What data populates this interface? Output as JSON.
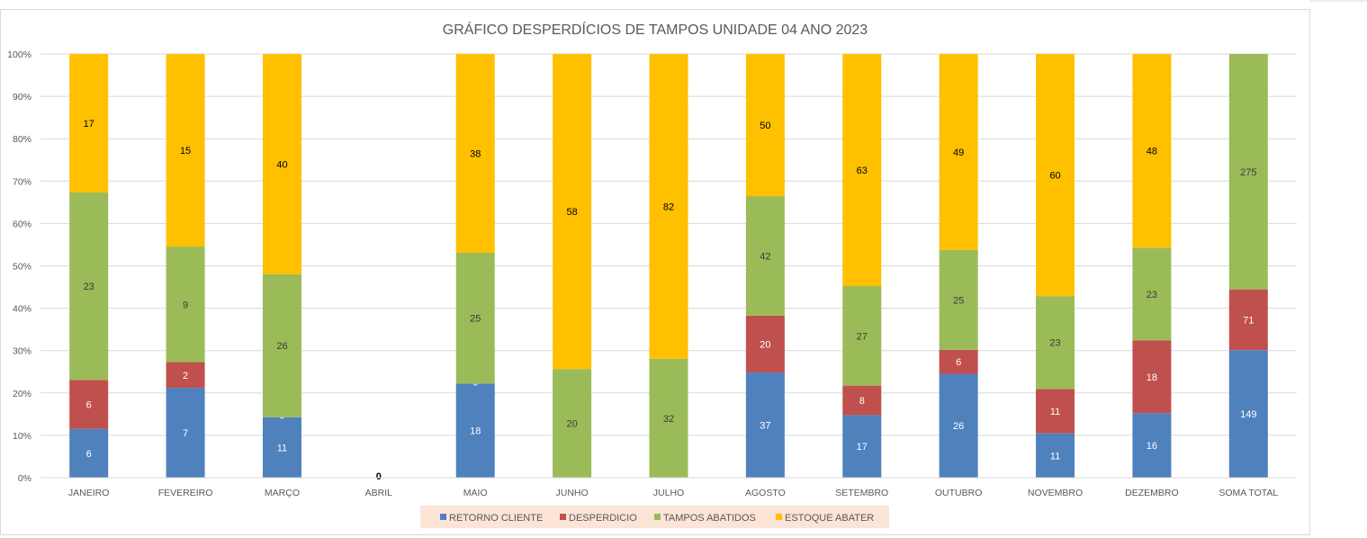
{
  "chart_data": {
    "type": "bar",
    "stacking": "percent",
    "title": "GRÁFICO DESPERDÍCIOS DE TAMPOS UNIDADE 04 ANO 2023",
    "xlabel": "",
    "ylabel": "",
    "ylim": [
      0,
      100
    ],
    "y_ticks": [
      "0%",
      "10%",
      "20%",
      "30%",
      "40%",
      "50%",
      "60%",
      "70%",
      "80%",
      "90%",
      "100%"
    ],
    "grid": true,
    "legend_position": "bottom",
    "categories": [
      "JANEIRO",
      "FEVEREIRO",
      "MARÇO",
      "ABRIL",
      "MAIO",
      "JUNHO",
      "JULHO",
      "AGOSTO",
      "SETEMBRO",
      "OUTUBRO",
      "NOVEMBRO",
      "DEZEMBRO",
      "SOMA TOTAL"
    ],
    "abril_label": "0",
    "series": [
      {
        "name": "RETORNO  CLIENTE",
        "color": "#4F81BD",
        "label_color": "#ffffff",
        "values": [
          6,
          7,
          11,
          0,
          18,
          0,
          0,
          37,
          17,
          26,
          11,
          16,
          149
        ]
      },
      {
        "name": "DESPERDICIO",
        "color": "#C0504D",
        "label_color": "#ffffff",
        "values": [
          6,
          2,
          0,
          0,
          0,
          0,
          0,
          20,
          8,
          6,
          11,
          18,
          71
        ]
      },
      {
        "name": "TAMPOS ABATIDOS",
        "color": "#9BBB59",
        "label_color": "#3a3a3a",
        "values": [
          23,
          9,
          26,
          0,
          25,
          20,
          32,
          42,
          27,
          25,
          23,
          23,
          275
        ]
      },
      {
        "name": "ESTOQUE  ABATER",
        "color": "#FFC000",
        "label_color": "#000000",
        "values": [
          17,
          15,
          40,
          0,
          38,
          58,
          82,
          50,
          63,
          49,
          60,
          48,
          0
        ]
      }
    ]
  }
}
